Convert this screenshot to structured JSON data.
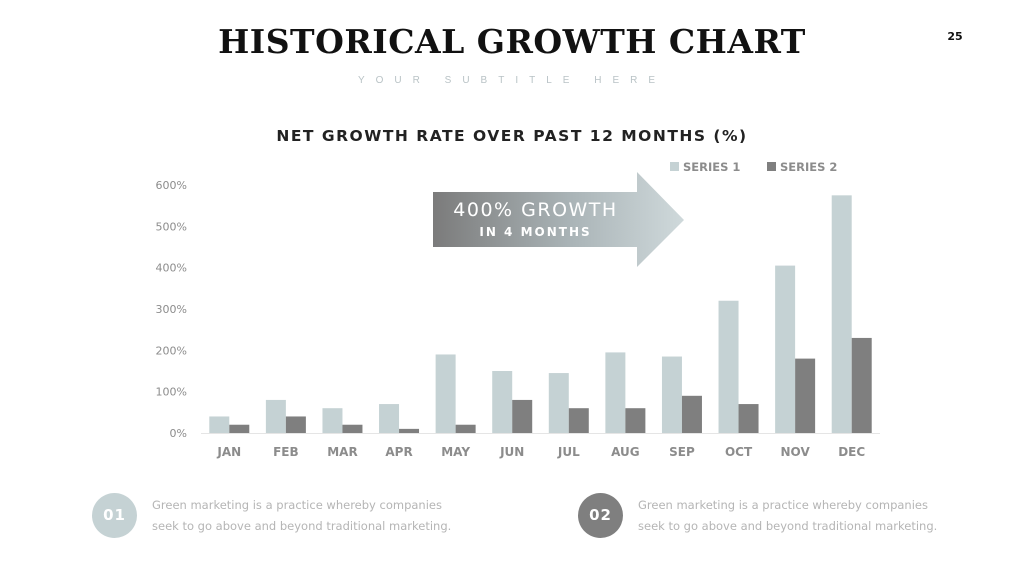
{
  "slide": {
    "title": "HISTORICAL GROWTH CHART",
    "subtitle": "YOUR SUBTITLE HERE",
    "page_number": "25"
  },
  "callout": {
    "main": "400% GROWTH",
    "sub": "IN 4 MONTHS"
  },
  "features": [
    {
      "number": "01",
      "line1": "Green marketing is a practice whereby companies",
      "line2": "seek to go above and beyond traditional marketing.",
      "color": "#c5d2d4"
    },
    {
      "number": "02",
      "line1": "Green marketing is a practice whereby companies",
      "line2": "seek to go above and beyond traditional marketing.",
      "color": "#7f7f7f"
    }
  ],
  "chart_data": {
    "type": "bar",
    "title": "NET GROWTH RATE OVER PAST 12 MONTHS (%)",
    "xlabel": "",
    "ylabel": "",
    "categories": [
      "JAN",
      "FEB",
      "MAR",
      "APR",
      "MAY",
      "JUN",
      "JUL",
      "AUG",
      "SEP",
      "OCT",
      "NOV",
      "DEC"
    ],
    "series": [
      {
        "name": "SERIES 1",
        "color": "#c5d2d4",
        "values": [
          40,
          80,
          60,
          70,
          190,
          150,
          145,
          195,
          185,
          320,
          405,
          575
        ]
      },
      {
        "name": "SERIES 2",
        "color": "#7f7f7f",
        "values": [
          20,
          40,
          20,
          10,
          20,
          80,
          60,
          60,
          90,
          70,
          180,
          230
        ]
      }
    ],
    "ylim": [
      0,
      600
    ],
    "yticks": [
      0,
      100,
      200,
      300,
      400,
      500,
      600
    ],
    "ytick_labels": [
      "0%",
      "100%",
      "200%",
      "300%",
      "400%",
      "500%",
      "600%"
    ],
    "grid": false,
    "legend_position": "top-right"
  }
}
